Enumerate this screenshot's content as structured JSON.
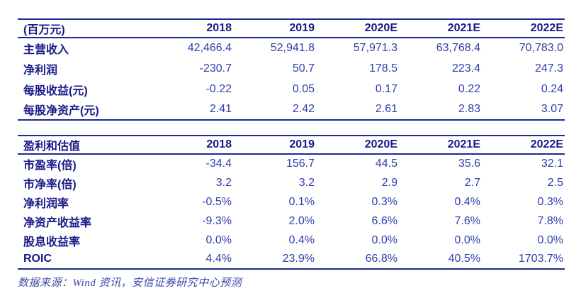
{
  "colors": {
    "line": "#1b2a90",
    "label": "#191989",
    "number": "#2e3ead",
    "source": "#3a49a8"
  },
  "chart_data": [
    {
      "type": "table",
      "title": "(百万元)",
      "columns": [
        "2018",
        "2019",
        "2020E",
        "2021E",
        "2022E"
      ],
      "rows": [
        {
          "label": "主营收入",
          "values": [
            "42,466.4",
            "52,941.8",
            "57,971.3",
            "63,768.4",
            "70,783.0"
          ]
        },
        {
          "label": "净利润",
          "values": [
            "-230.7",
            "50.7",
            "178.5",
            "223.4",
            "247.3"
          ]
        },
        {
          "label": "每股收益(元)",
          "values": [
            "-0.22",
            "0.05",
            "0.17",
            "0.22",
            "0.24"
          ]
        },
        {
          "label": "每股净资产(元)",
          "values": [
            "2.41",
            "2.42",
            "2.61",
            "2.83",
            "3.07"
          ]
        }
      ]
    },
    {
      "type": "table",
      "title": "盈利和估值",
      "columns": [
        "2018",
        "2019",
        "2020E",
        "2021E",
        "2022E"
      ],
      "rows": [
        {
          "label": "市盈率(倍)",
          "values": [
            "-34.4",
            "156.7",
            "44.5",
            "35.6",
            "32.1"
          ]
        },
        {
          "label": "市净率(倍)",
          "values": [
            "3.2",
            "3.2",
            "2.9",
            "2.7",
            "2.5"
          ]
        },
        {
          "label": "净利润率",
          "values": [
            "-0.5%",
            "0.1%",
            "0.3%",
            "0.4%",
            "0.3%"
          ]
        },
        {
          "label": "净资产收益率",
          "values": [
            "-9.3%",
            "2.0%",
            "6.6%",
            "7.6%",
            "7.8%"
          ]
        },
        {
          "label": "股息收益率",
          "values": [
            "0.0%",
            "0.4%",
            "0.0%",
            "0.0%",
            "0.0%"
          ]
        },
        {
          "label": "ROIC",
          "values": [
            "4.4%",
            "23.9%",
            "66.8%",
            "40.5%",
            "1703.7%"
          ]
        }
      ]
    }
  ],
  "footer": {
    "source_note": "数据来源：Wind 资讯，安信证券研究中心预测"
  }
}
